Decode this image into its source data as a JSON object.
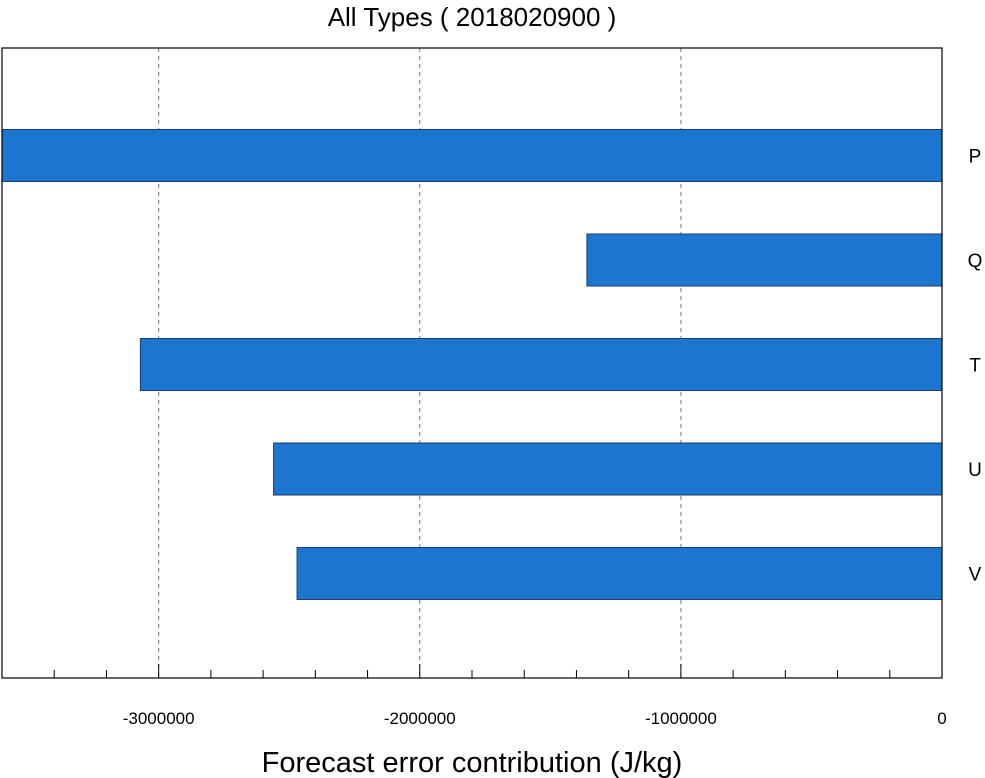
{
  "chart_data": {
    "type": "bar",
    "orientation": "horizontal",
    "title": "All Types  ( 2018020900 )",
    "xlabel": "Forecast error contribution (J/kg)",
    "ylabel": "",
    "categories": [
      "P",
      "Q",
      "T",
      "U",
      "V"
    ],
    "values": [
      -3600000,
      -1360000,
      -3070000,
      -2560000,
      -2470000
    ],
    "xlim": [
      -3600000,
      0
    ],
    "x_ticks": [
      -3000000,
      -2000000,
      -1000000,
      0
    ],
    "x_tick_labels": [
      "-3000000",
      "-2000000",
      "-1000000",
      "0"
    ],
    "x_minor_step": 200000,
    "grid": "vertical dashed at major ticks",
    "category_label_side": "right",
    "bar_color": "#1c75cf"
  }
}
